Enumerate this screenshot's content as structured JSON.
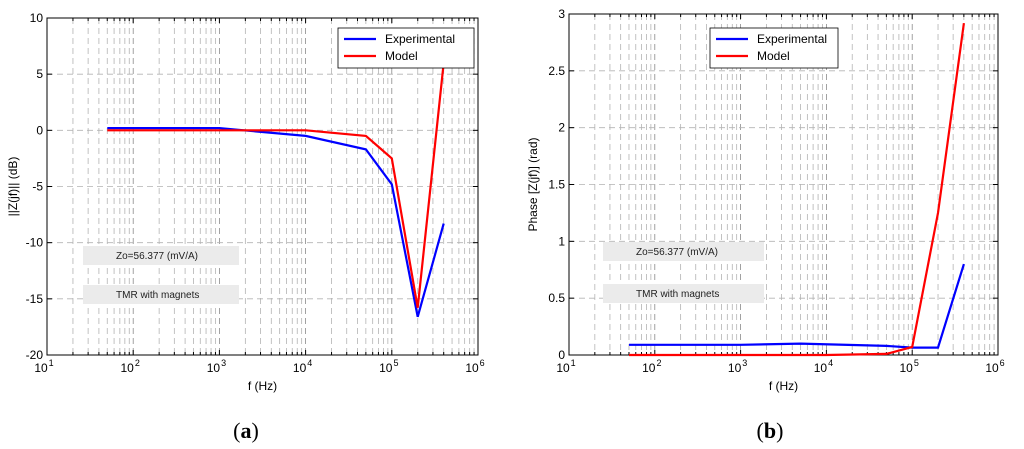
{
  "chart_data": [
    {
      "type": "line",
      "caption_letter": "a",
      "xscale": "log",
      "xlim": [
        10,
        1000000
      ],
      "ylim": [
        -20,
        10
      ],
      "yticks": [
        10,
        5,
        0,
        -5,
        -10,
        -15,
        -20
      ],
      "yticklabels": [
        "10",
        "5",
        "0",
        "-5",
        "-10",
        "-15",
        "-20"
      ],
      "xlabel": "f (Hz)",
      "ylabel": "||Z(jf)|| (dB)",
      "xtick_base": "10",
      "xtick_exponents": [
        "1",
        "2",
        "3",
        "4",
        "5",
        "6"
      ],
      "legend": {
        "position": "top-right",
        "entries": [
          "Experimental",
          "Model"
        ]
      },
      "annotations": [
        "Zo=56.377 (mV/A)",
        "TMR with magnets"
      ],
      "series": [
        {
          "name": "Experimental",
          "color": "#0000ff",
          "x": [
            50,
            1000,
            10000,
            50000,
            100000,
            200000,
            400000
          ],
          "y": [
            0.2,
            0.2,
            -0.5,
            -1.7,
            -4.8,
            -16.6,
            -8.3
          ]
        },
        {
          "name": "Model",
          "color": "#ff0000",
          "x": [
            50,
            1000,
            10000,
            50000,
            100000,
            200000,
            400000
          ],
          "y": [
            0.0,
            0.0,
            0.0,
            -0.5,
            -2.5,
            -15.8,
            6.0
          ]
        }
      ]
    },
    {
      "type": "line",
      "caption_letter": "b",
      "xscale": "log",
      "xlim": [
        10,
        1000000
      ],
      "ylim": [
        0,
        3
      ],
      "yticks": [
        3,
        2.5,
        2,
        1.5,
        1,
        0.5,
        0
      ],
      "yticklabels": [
        "3",
        "2.5",
        "2",
        "1.5",
        "1",
        "0.5",
        "0"
      ],
      "xlabel": "f (Hz)",
      "ylabel": "Phase [Z(jf)] (rad)",
      "xtick_base": "10",
      "xtick_exponents": [
        "1",
        "2",
        "3",
        "4",
        "5",
        "6"
      ],
      "legend": {
        "position": "top-right",
        "entries": [
          "Experimental",
          "Model"
        ]
      },
      "annotations": [
        "Zo=56.377 (mV/A)",
        "TMR with magnets"
      ],
      "series": [
        {
          "name": "Experimental",
          "color": "#0000ff",
          "x": [
            50,
            1000,
            5000,
            50000,
            100000,
            200000,
            400000
          ],
          "y": [
            0.09,
            0.09,
            0.1,
            0.08,
            0.065,
            0.065,
            0.8
          ]
        },
        {
          "name": "Model",
          "color": "#ff0000",
          "x": [
            50,
            1000,
            10000,
            50000,
            100000,
            200000,
            400000
          ],
          "y": [
            0.0,
            0.0,
            0.0,
            0.01,
            0.07,
            1.25,
            2.92
          ]
        }
      ]
    }
  ]
}
